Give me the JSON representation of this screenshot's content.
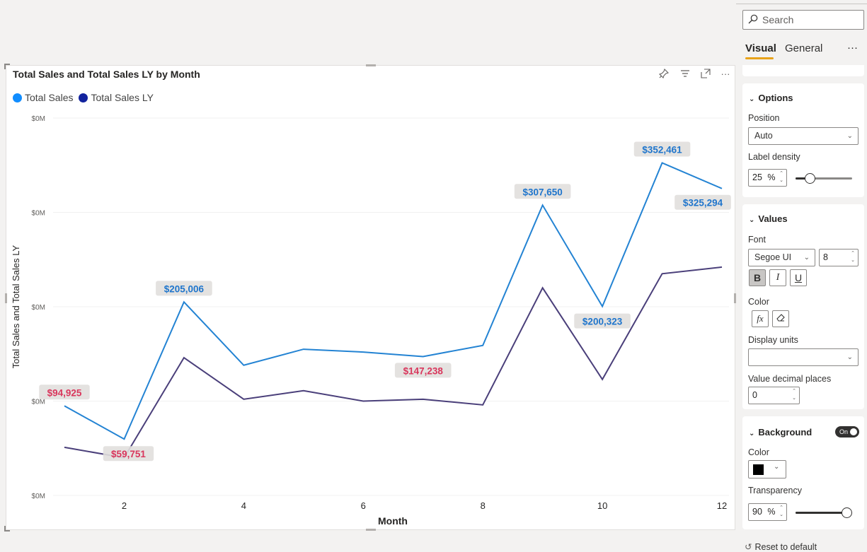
{
  "visual": {
    "title": "Total Sales and Total Sales LY by Month",
    "icons": [
      "pin-icon",
      "filter-icon",
      "focus-mode-icon",
      "more-options-icon"
    ]
  },
  "legend": [
    {
      "label": "Total Sales",
      "color": "#118dff"
    },
    {
      "label": "Total Sales LY",
      "color": "#12239e"
    }
  ],
  "chart_data": {
    "type": "line",
    "title": "Total Sales and Total Sales LY by Month",
    "xlabel": "Month",
    "ylabel": "Total Sales and Total Sales LY",
    "x_ticks": [
      "2",
      "4",
      "6",
      "8",
      "10",
      "12"
    ],
    "y_tick_labels": [
      "$0M",
      "$0M",
      "$0M",
      "$0M",
      "$0M"
    ],
    "xlim": [
      1,
      12
    ],
    "ylim": [
      0,
      400000
    ],
    "x": [
      1,
      2,
      3,
      4,
      5,
      6,
      7,
      8,
      9,
      10,
      11,
      12
    ],
    "series": [
      {
        "name": "Total Sales",
        "color": "#2383d3",
        "values": [
          94925,
          59751,
          205006,
          138000,
          155000,
          152000,
          147238,
          159000,
          307650,
          200323,
          352461,
          325294
        ]
      },
      {
        "name": "Total Sales LY",
        "color": "#4a3f7a",
        "values": [
          51000,
          40000,
          146000,
          102000,
          111000,
          100000,
          102000,
          96000,
          220000,
          123000,
          235000,
          242000
        ]
      }
    ],
    "data_labels": [
      {
        "text": "$94,925",
        "x": 1,
        "y": 94925,
        "series": 0,
        "color": "#d9365c"
      },
      {
        "text": "$59,751",
        "x": 2,
        "y": 59751,
        "series": 0,
        "color": "#d9365c"
      },
      {
        "text": "$205,006",
        "x": 3,
        "y": 205006,
        "series": 0,
        "color": "#1f75cc"
      },
      {
        "text": "$147,238",
        "x": 7,
        "y": 147238,
        "series": 0,
        "color": "#d9365c"
      },
      {
        "text": "$307,650",
        "x": 9,
        "y": 307650,
        "series": 0,
        "color": "#1f75cc"
      },
      {
        "text": "$200,323",
        "x": 10,
        "y": 200323,
        "series": 0,
        "color": "#1f75cc"
      },
      {
        "text": "$352,461",
        "x": 11,
        "y": 352461,
        "series": 0,
        "color": "#1f75cc"
      },
      {
        "text": "$325,294",
        "x": 12,
        "y": 325294,
        "series": 0,
        "color": "#1f75cc"
      }
    ],
    "grid": true
  },
  "pane": {
    "search_placeholder": "Search",
    "tabs": [
      "Visual",
      "General"
    ],
    "more": "···",
    "options": {
      "title": "Options",
      "position_label": "Position",
      "position_value": "Auto",
      "density_label": "Label density",
      "density_value": "25",
      "density_unit": "%",
      "density_fraction": 0.25
    },
    "values": {
      "title": "Values",
      "font_label": "Font",
      "font_value": "Segoe UI",
      "font_size": "8",
      "bold": "B",
      "italic": "I",
      "underline": "U",
      "color_label": "Color",
      "fx": "fx",
      "display_units_label": "Display units",
      "display_units_value": "",
      "decimal_label": "Value decimal places",
      "decimal_value": "0"
    },
    "background": {
      "title": "Background",
      "toggle": "On",
      "color_label": "Color",
      "color_swatch": "#000000",
      "transparency_label": "Transparency",
      "transparency_value": "90",
      "transparency_unit": "%",
      "transparency_fraction": 0.9
    },
    "reset": "Reset to default"
  }
}
